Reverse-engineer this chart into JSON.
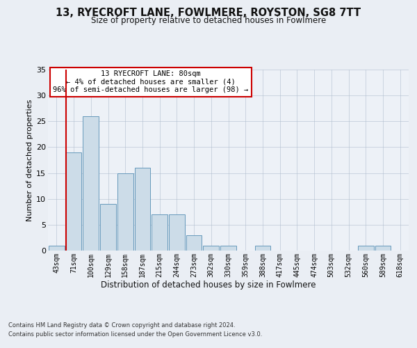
{
  "title1": "13, RYECROFT LANE, FOWLMERE, ROYSTON, SG8 7TT",
  "title2": "Size of property relative to detached houses in Fowlmere",
  "xlabel": "Distribution of detached houses by size in Fowlmere",
  "ylabel": "Number of detached properties",
  "categories": [
    "43sqm",
    "71sqm",
    "100sqm",
    "129sqm",
    "158sqm",
    "187sqm",
    "215sqm",
    "244sqm",
    "273sqm",
    "302sqm",
    "330sqm",
    "359sqm",
    "388sqm",
    "417sqm",
    "445sqm",
    "474sqm",
    "503sqm",
    "532sqm",
    "560sqm",
    "589sqm",
    "618sqm"
  ],
  "bar_values": [
    1,
    19,
    26,
    9,
    15,
    16,
    7,
    7,
    3,
    1,
    1,
    0,
    1,
    0,
    0,
    0,
    0,
    0,
    1,
    1,
    0
  ],
  "bar_color": "#ccdce8",
  "bar_edge_color": "#6699bb",
  "vline_color": "#cc0000",
  "vline_x_index": 1,
  "ylim": [
    0,
    35
  ],
  "yticks": [
    0,
    5,
    10,
    15,
    20,
    25,
    30,
    35
  ],
  "annotation_text": "13 RYECROFT LANE: 80sqm\n← 4% of detached houses are smaller (4)\n96% of semi-detached houses are larger (98) →",
  "annotation_box_facecolor": "#ffffff",
  "annotation_box_edgecolor": "#cc0000",
  "footer1": "Contains HM Land Registry data © Crown copyright and database right 2024.",
  "footer2": "Contains public sector information licensed under the Open Government Licence v3.0.",
  "bg_color": "#eaeef4",
  "plot_bg_color": "#edf1f7",
  "title1_fontsize": 10.5,
  "title2_fontsize": 8.5,
  "ylabel_fontsize": 8,
  "xlabel_fontsize": 8.5,
  "tick_fontsize": 7,
  "ytick_fontsize": 8,
  "footer_fontsize": 6,
  "ann_fontsize": 7.5
}
